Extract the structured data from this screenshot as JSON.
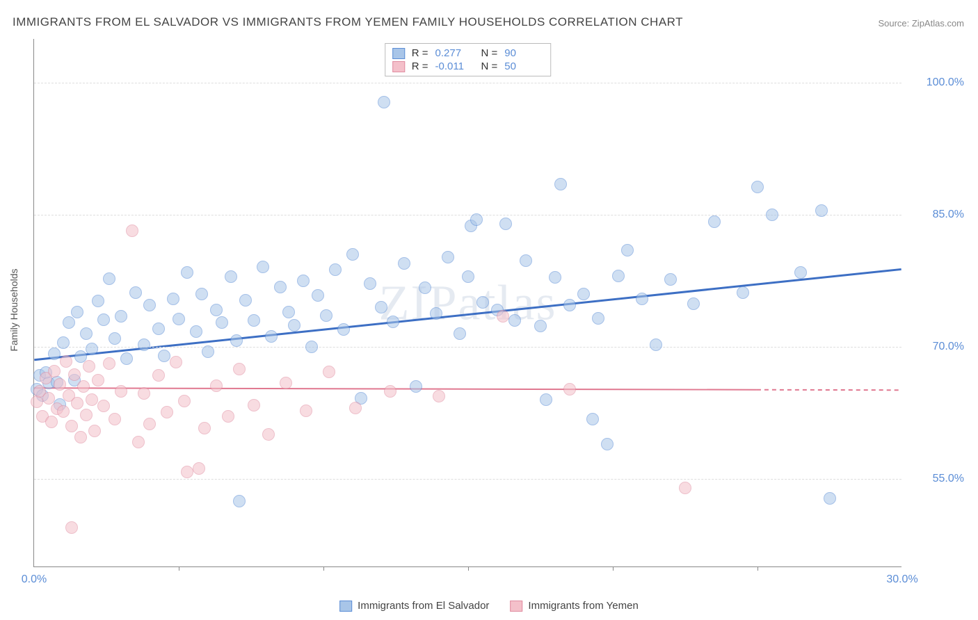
{
  "title": "IMMIGRANTS FROM EL SALVADOR VS IMMIGRANTS FROM YEMEN FAMILY HOUSEHOLDS CORRELATION CHART",
  "source": "Source: ZipAtlas.com",
  "y_axis_title": "Family Households",
  "watermark": "ZIPatlas",
  "chart": {
    "type": "scatter",
    "background_color": "#ffffff",
    "grid_color": "#dddddd",
    "axis_color": "#888888",
    "xlim": [
      0,
      30
    ],
    "ylim": [
      45,
      105
    ],
    "y_ticks": [
      55.0,
      70.0,
      85.0,
      100.0
    ],
    "x_ticks_major": [
      0,
      30
    ],
    "x_ticks_minor": [
      5,
      10,
      15,
      20,
      25
    ],
    "y_tick_fmt": "%",
    "marker_radius": 9,
    "marker_opacity": 0.55,
    "series": [
      {
        "key": "el_salvador",
        "label": "Immigrants from El Salvador",
        "fill": "#a8c5e8",
        "stroke": "#5b8dd6",
        "line_color": "#3d6fc4",
        "line_width": 3,
        "R": "0.277",
        "N": "90",
        "trend": {
          "x1": 0,
          "y1": 68.5,
          "x2": 30,
          "y2": 78.8
        },
        "points": [
          [
            0.1,
            65.2
          ],
          [
            0.2,
            66.8
          ],
          [
            0.3,
            64.5
          ],
          [
            0.4,
            67.1
          ],
          [
            0.5,
            65.9
          ],
          [
            0.7,
            69.2
          ],
          [
            0.8,
            66.0
          ],
          [
            0.9,
            63.5
          ],
          [
            1.0,
            70.5
          ],
          [
            1.2,
            72.8
          ],
          [
            1.4,
            66.2
          ],
          [
            1.5,
            74.0
          ],
          [
            1.6,
            68.9
          ],
          [
            1.8,
            71.5
          ],
          [
            2.0,
            69.8
          ],
          [
            2.2,
            75.2
          ],
          [
            2.4,
            73.1
          ],
          [
            2.6,
            77.8
          ],
          [
            2.8,
            71.0
          ],
          [
            3.0,
            73.5
          ],
          [
            3.2,
            68.7
          ],
          [
            3.5,
            76.2
          ],
          [
            3.8,
            70.3
          ],
          [
            4.0,
            74.8
          ],
          [
            4.3,
            72.1
          ],
          [
            4.5,
            69.0
          ],
          [
            4.8,
            75.5
          ],
          [
            5.0,
            73.2
          ],
          [
            5.3,
            78.5
          ],
          [
            5.6,
            71.8
          ],
          [
            5.8,
            76.0
          ],
          [
            6.0,
            69.5
          ],
          [
            6.3,
            74.2
          ],
          [
            6.5,
            72.8
          ],
          [
            6.8,
            78.0
          ],
          [
            7.0,
            70.7
          ],
          [
            7.1,
            52.5
          ],
          [
            7.3,
            75.3
          ],
          [
            7.6,
            73.0
          ],
          [
            7.9,
            79.1
          ],
          [
            8.2,
            71.2
          ],
          [
            8.5,
            76.8
          ],
          [
            8.8,
            74.0
          ],
          [
            9.0,
            72.5
          ],
          [
            9.3,
            77.5
          ],
          [
            9.6,
            70.0
          ],
          [
            9.8,
            75.9
          ],
          [
            10.1,
            73.6
          ],
          [
            10.4,
            78.8
          ],
          [
            10.7,
            72.0
          ],
          [
            11.0,
            80.5
          ],
          [
            11.3,
            64.2
          ],
          [
            11.6,
            77.2
          ],
          [
            12.0,
            74.5
          ],
          [
            12.1,
            97.8
          ],
          [
            12.4,
            72.9
          ],
          [
            12.8,
            79.5
          ],
          [
            13.2,
            65.5
          ],
          [
            13.5,
            76.7
          ],
          [
            13.9,
            73.8
          ],
          [
            14.3,
            80.2
          ],
          [
            14.7,
            71.5
          ],
          [
            15.0,
            78.0
          ],
          [
            15.1,
            83.8
          ],
          [
            15.3,
            84.5
          ],
          [
            15.5,
            75.1
          ],
          [
            16.0,
            74.2
          ],
          [
            16.3,
            84.0
          ],
          [
            16.6,
            73.0
          ],
          [
            17.0,
            79.8
          ],
          [
            17.5,
            72.4
          ],
          [
            17.7,
            64.0
          ],
          [
            18.0,
            77.9
          ],
          [
            18.2,
            88.5
          ],
          [
            18.5,
            74.8
          ],
          [
            19.0,
            76.0
          ],
          [
            19.3,
            61.8
          ],
          [
            19.5,
            73.3
          ],
          [
            19.8,
            59.0
          ],
          [
            20.2,
            78.1
          ],
          [
            20.5,
            81.0
          ],
          [
            21.0,
            75.5
          ],
          [
            21.5,
            70.3
          ],
          [
            22.0,
            77.7
          ],
          [
            22.8,
            74.9
          ],
          [
            23.5,
            84.2
          ],
          [
            24.5,
            76.2
          ],
          [
            25.0,
            88.2
          ],
          [
            25.5,
            85.0
          ],
          [
            26.5,
            78.5
          ],
          [
            27.2,
            85.5
          ],
          [
            27.5,
            52.8
          ]
        ]
      },
      {
        "key": "yemen",
        "label": "Immigrants from Yemen",
        "fill": "#f4c0ca",
        "stroke": "#e08ca0",
        "line_color": "#e07890",
        "line_width": 2,
        "R": "-0.011",
        "N": "50",
        "trend": {
          "x1": 0,
          "y1": 65.3,
          "x2": 25,
          "y2": 65.1,
          "extend_x2": 30
        },
        "points": [
          [
            0.1,
            63.8
          ],
          [
            0.2,
            65.0
          ],
          [
            0.3,
            62.1
          ],
          [
            0.4,
            66.5
          ],
          [
            0.5,
            64.2
          ],
          [
            0.6,
            61.5
          ],
          [
            0.7,
            67.3
          ],
          [
            0.8,
            63.0
          ],
          [
            0.9,
            65.8
          ],
          [
            1.0,
            62.7
          ],
          [
            1.1,
            68.4
          ],
          [
            1.2,
            64.5
          ],
          [
            1.3,
            61.0
          ],
          [
            1.4,
            66.9
          ],
          [
            1.5,
            63.6
          ],
          [
            1.6,
            59.8
          ],
          [
            1.7,
            65.5
          ],
          [
            1.8,
            62.3
          ],
          [
            1.9,
            67.8
          ],
          [
            2.0,
            64.0
          ],
          [
            2.1,
            60.5
          ],
          [
            2.2,
            66.2
          ],
          [
            2.4,
            63.3
          ],
          [
            2.6,
            68.1
          ],
          [
            2.8,
            61.8
          ],
          [
            3.0,
            65.0
          ],
          [
            3.4,
            83.2
          ],
          [
            3.6,
            59.2
          ],
          [
            3.8,
            64.7
          ],
          [
            4.0,
            61.3
          ],
          [
            4.3,
            66.8
          ],
          [
            4.6,
            62.6
          ],
          [
            4.9,
            68.3
          ],
          [
            5.2,
            63.9
          ],
          [
            5.3,
            55.8
          ],
          [
            5.7,
            56.2
          ],
          [
            5.9,
            60.8
          ],
          [
            6.3,
            65.6
          ],
          [
            6.7,
            62.1
          ],
          [
            7.1,
            67.5
          ],
          [
            7.6,
            63.4
          ],
          [
            8.1,
            60.1
          ],
          [
            8.7,
            65.9
          ],
          [
            9.4,
            62.8
          ],
          [
            10.2,
            67.2
          ],
          [
            11.1,
            63.1
          ],
          [
            12.3,
            65.0
          ],
          [
            14.0,
            64.4
          ],
          [
            1.3,
            49.5
          ],
          [
            16.2,
            73.5
          ],
          [
            18.5,
            65.2
          ],
          [
            22.5,
            54.0
          ]
        ]
      }
    ]
  },
  "x_tick_labels": {
    "min": "0.0%",
    "max": "30.0%"
  }
}
